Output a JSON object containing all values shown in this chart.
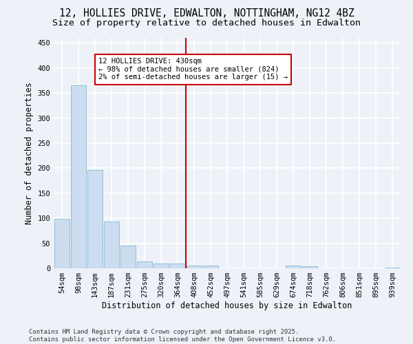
{
  "title": "12, HOLLIES DRIVE, EDWALTON, NOTTINGHAM, NG12 4BZ",
  "subtitle": "Size of property relative to detached houses in Edwalton",
  "xlabel": "Distribution of detached houses by size in Edwalton",
  "ylabel": "Number of detached properties",
  "categories": [
    "54sqm",
    "98sqm",
    "143sqm",
    "187sqm",
    "231sqm",
    "275sqm",
    "320sqm",
    "364sqm",
    "408sqm",
    "452sqm",
    "497sqm",
    "541sqm",
    "585sqm",
    "629sqm",
    "674sqm",
    "718sqm",
    "762sqm",
    "806sqm",
    "851sqm",
    "895sqm",
    "939sqm"
  ],
  "values": [
    99,
    365,
    196,
    93,
    46,
    14,
    10,
    9,
    6,
    5,
    0,
    0,
    0,
    0,
    5,
    4,
    0,
    0,
    0,
    0,
    2
  ],
  "bar_color": "#ccddef",
  "bar_edge_color": "#90bdd8",
  "background_color": "#eef2f8",
  "grid_color": "#ffffff",
  "vline_x_index": 8,
  "vline_color": "#cc0000",
  "annotation_text": "12 HOLLIES DRIVE: 430sqm\n← 98% of detached houses are smaller (824)\n2% of semi-detached houses are larger (15) →",
  "annotation_box_color": "#ffffff",
  "annotation_box_edge": "#cc0000",
  "ylim": [
    0,
    460
  ],
  "yticks": [
    0,
    50,
    100,
    150,
    200,
    250,
    300,
    350,
    400,
    450
  ],
  "footer": "Contains HM Land Registry data © Crown copyright and database right 2025.\nContains public sector information licensed under the Open Government Licence v3.0.",
  "title_fontsize": 10.5,
  "subtitle_fontsize": 9.5,
  "label_fontsize": 8.5,
  "tick_fontsize": 7.5,
  "footer_fontsize": 6.5,
  "annot_fontsize": 7.5
}
